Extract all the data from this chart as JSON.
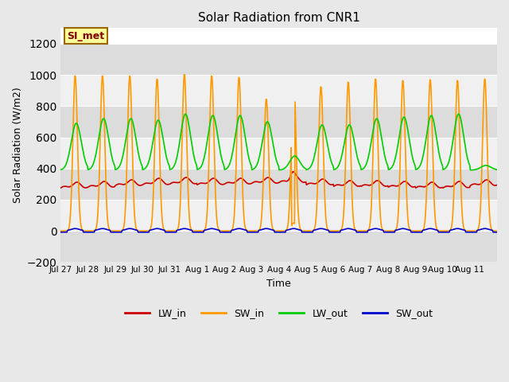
{
  "title": "Solar Radiation from CNR1",
  "xlabel": "Time",
  "ylabel": "Solar Radiation (W/m2)",
  "ylim": [
    -200,
    1300
  ],
  "yticks": [
    -200,
    0,
    200,
    400,
    600,
    800,
    1000,
    1200
  ],
  "fig_bg_color": "#e8e8e8",
  "plot_bg_color": "#ffffff",
  "annotation_text": "SI_met",
  "annotation_bg": "#ffff99",
  "annotation_border": "#996600",
  "n_days": 16,
  "x_tick_labels": [
    "Jul 27",
    "Jul 28",
    "Jul 29",
    "Jul 30",
    "Jul 31",
    "Aug 1",
    "Aug 2",
    "Aug 3",
    "Aug 4",
    "Aug 5",
    "Aug 6",
    "Aug 7",
    "Aug 8",
    "Aug 9",
    "Aug 10",
    "Aug 11"
  ],
  "colors": {
    "LW_in": "#cc0000",
    "SW_in": "#ff9900",
    "LW_out": "#00cc00",
    "SW_out": "#0000cc"
  },
  "band_colors": [
    "#dcdcdc",
    "#f0f0f0"
  ],
  "line_width": 1.2
}
